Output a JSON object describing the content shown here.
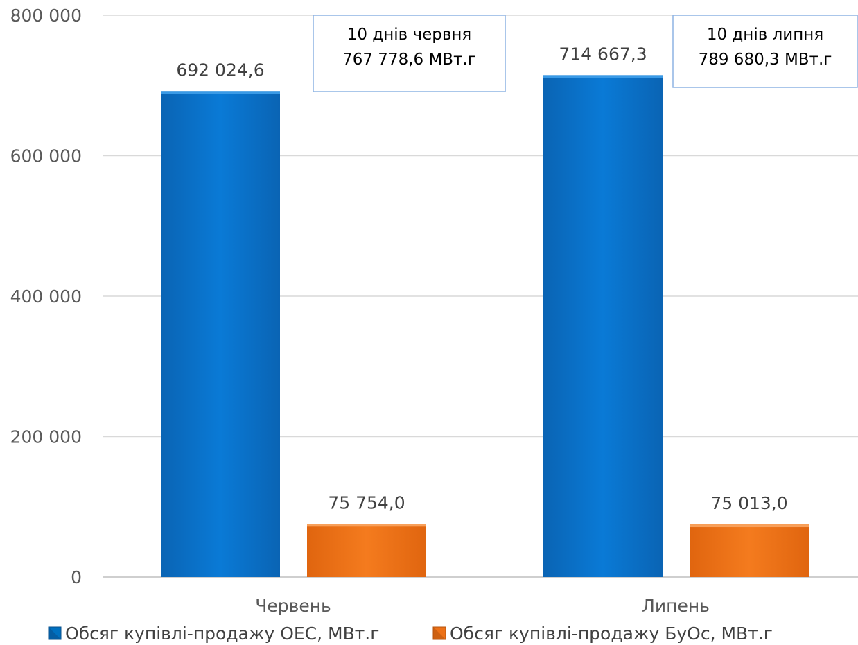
{
  "chart_data": {
    "type": "bar",
    "categories": [
      "Червень",
      "Липень"
    ],
    "series": [
      {
        "name": "Обсяг купівлі-продажу ОЕС, МВт.г",
        "values": [
          692024.6,
          714667.3
        ],
        "labels": [
          "692 024,6",
          "714 667,3"
        ],
        "color": "#0070c0"
      },
      {
        "name": "Обсяг купівлі-продажу БуОс, МВт.г",
        "values": [
          75754.0,
          75013.0
        ],
        "labels": [
          "75 754,0",
          "75 013,0"
        ],
        "color": "#ed7117"
      }
    ],
    "ylim": [
      0,
      800000
    ],
    "yticks": [
      0,
      200000,
      400000,
      600000,
      800000
    ],
    "ytick_labels": [
      "0",
      "200 000",
      "400 000",
      "600 000",
      "800 000"
    ],
    "grid": true,
    "legend_position": "bottom",
    "annotations": [
      {
        "line1": "10 днів червня",
        "line2": "767 778,6 МВт.г"
      },
      {
        "line1": "10 днів липня",
        "line2": "789 680,3 МВт.г"
      }
    ]
  }
}
